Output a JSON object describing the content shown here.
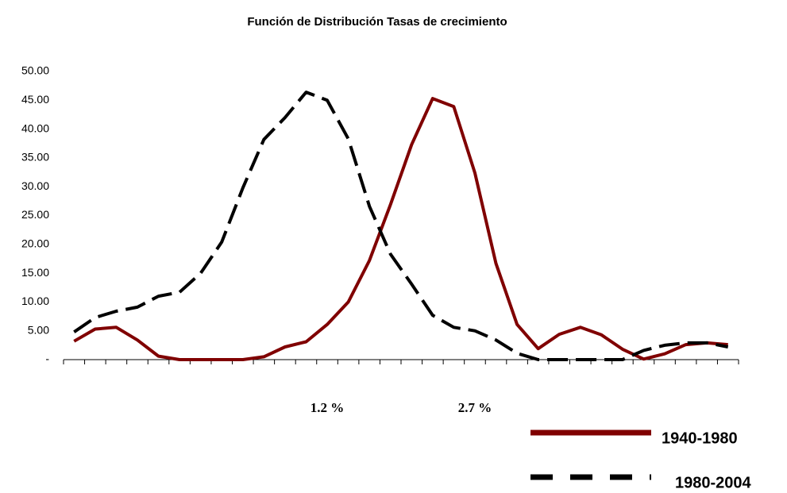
{
  "chart_data": {
    "type": "line",
    "title": "Función de Distribución Tasas de crecimiento",
    "categories": [
      null,
      null,
      null,
      null,
      null,
      null,
      null,
      null,
      null,
      null,
      null,
      null,
      "1.2 %",
      null,
      null,
      null,
      null,
      null,
      null,
      "2.7 %",
      null,
      null,
      null,
      null,
      null,
      null,
      null,
      null,
      null,
      null,
      null,
      null
    ],
    "series": [
      {
        "name": "1940-1980",
        "color": "#800000",
        "dash": false,
        "values": [
          3.2,
          5.3,
          5.6,
          3.4,
          0.6,
          0,
          0,
          0,
          0,
          0.5,
          2.2,
          3.1,
          6.1,
          10,
          17.2,
          26.9,
          37.3,
          45.3,
          43.9,
          32.4,
          16.7,
          6.1,
          1.9,
          4.4,
          5.6,
          4.3,
          1.8,
          0.1,
          1,
          2.6,
          2.9,
          2.6
        ]
      },
      {
        "name": "1980-2004",
        "color": "#000000",
        "dash": true,
        "values": [
          4.8,
          7.3,
          8.4,
          9.1,
          11,
          11.7,
          15,
          20.4,
          29.8,
          38.2,
          42,
          46.4,
          45,
          38.3,
          26.6,
          18.3,
          13.1,
          7.7,
          5.6,
          5,
          3.4,
          1.1,
          0,
          0,
          0,
          0,
          0,
          1.6,
          2.5,
          2.9,
          2.9,
          2.2
        ]
      }
    ],
    "ylim": [
      0,
      50
    ],
    "yticks": [
      {
        "value": 0,
        "label": "-"
      },
      {
        "value": 5,
        "label": "5.00"
      },
      {
        "value": 10,
        "label": "10.00"
      },
      {
        "value": 15,
        "label": "15.00"
      },
      {
        "value": 20,
        "label": "20.00"
      },
      {
        "value": 25,
        "label": "25.00"
      },
      {
        "value": 30,
        "label": "30.00"
      },
      {
        "value": 35,
        "label": "35.00"
      },
      {
        "value": 40,
        "label": "40.00"
      },
      {
        "value": 45,
        "label": "45.00"
      },
      {
        "value": 50,
        "label": "50.00"
      }
    ],
    "grid": false
  }
}
